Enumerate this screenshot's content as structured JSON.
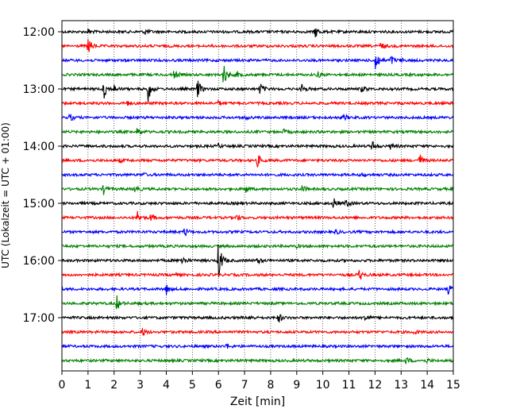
{
  "chart_data": {
    "type": "line",
    "xlabel": "Zeit  [min]",
    "ylabel": "UTC (Lokalzeit = UTC + 01:00)",
    "xlim": [
      0,
      15
    ],
    "x_ticks": [
      0,
      1,
      2,
      3,
      4,
      5,
      6,
      7,
      8,
      9,
      10,
      11,
      12,
      13,
      14,
      15
    ],
    "x_tick_labels": [
      "0",
      "1",
      "2",
      "3",
      "4",
      "5",
      "6",
      "7",
      "8",
      "9",
      "10",
      "11",
      "12",
      "13",
      "14",
      "15"
    ],
    "y_tick_labels": [
      "12:00",
      "13:00",
      "14:00",
      "15:00",
      "16:00",
      "17:00"
    ],
    "grid": "vertical dotted",
    "trace_colors": [
      "#000000",
      "#ff0000",
      "#0000ff",
      "#008000"
    ],
    "traces": [
      {
        "start": "12:00",
        "color": "#000000",
        "events": [
          [
            9.7,
            1.0
          ],
          [
            3.2,
            0.5
          ],
          [
            1.0,
            0.4
          ]
        ]
      },
      {
        "start": "12:15",
        "color": "#ff0000",
        "events": [
          [
            1.0,
            1.5
          ],
          [
            12.2,
            0.6
          ]
        ]
      },
      {
        "start": "12:30",
        "color": "#0000ff",
        "events": [
          [
            12.0,
            2.5
          ],
          [
            12.6,
            0.8
          ],
          [
            13.0,
            0.3
          ]
        ]
      },
      {
        "start": "12:45",
        "color": "#008000",
        "events": [
          [
            6.2,
            2.0
          ],
          [
            4.3,
            0.8
          ],
          [
            9.8,
            0.5
          ],
          [
            6.7,
            0.5
          ]
        ]
      },
      {
        "start": "13:00",
        "color": "#000000",
        "events": [
          [
            1.6,
            1.8
          ],
          [
            3.3,
            2.0
          ],
          [
            5.2,
            1.5
          ],
          [
            7.6,
            1.0
          ],
          [
            9.2,
            0.7
          ],
          [
            2.0,
            0.6
          ],
          [
            11.5,
            0.6
          ]
        ]
      },
      {
        "start": "13:15",
        "color": "#ff0000",
        "events": [
          [
            2.5,
            0.4
          ],
          [
            6.0,
            0.3
          ]
        ]
      },
      {
        "start": "13:30",
        "color": "#0000ff",
        "events": [
          [
            0.3,
            0.6
          ],
          [
            10.8,
            0.5
          ],
          [
            7.0,
            0.3
          ]
        ]
      },
      {
        "start": "13:45",
        "color": "#008000",
        "events": [
          [
            2.9,
            0.8
          ],
          [
            8.5,
            0.3
          ]
        ]
      },
      {
        "start": "14:00",
        "color": "#000000",
        "events": [
          [
            11.9,
            0.8
          ],
          [
            12.6,
            0.5
          ],
          [
            6.0,
            0.3
          ]
        ]
      },
      {
        "start": "14:15",
        "color": "#ff0000",
        "events": [
          [
            7.5,
            1.0
          ],
          [
            13.7,
            1.2
          ],
          [
            2.2,
            0.3
          ]
        ]
      },
      {
        "start": "14:30",
        "color": "#0000ff",
        "events": [
          [
            3.1,
            0.3
          ],
          [
            11.5,
            0.3
          ]
        ]
      },
      {
        "start": "14:45",
        "color": "#008000",
        "events": [
          [
            1.6,
            0.8
          ],
          [
            2.8,
            0.8
          ],
          [
            7.0,
            0.8
          ],
          [
            9.2,
            0.6
          ]
        ]
      },
      {
        "start": "15:00",
        "color": "#000000",
        "events": [
          [
            10.4,
            1.0
          ],
          [
            10.9,
            0.7
          ]
        ]
      },
      {
        "start": "15:15",
        "color": "#ff0000",
        "events": [
          [
            2.9,
            1.0
          ],
          [
            3.4,
            0.6
          ],
          [
            6.7,
            0.6
          ]
        ]
      },
      {
        "start": "15:30",
        "color": "#0000ff",
        "events": [
          [
            4.7,
            0.8
          ],
          [
            10.5,
            0.3
          ]
        ]
      },
      {
        "start": "15:45",
        "color": "#008000",
        "events": [
          [
            9.0,
            0.2
          ]
        ]
      },
      {
        "start": "16:00",
        "color": "#000000",
        "events": [
          [
            6.0,
            3.5
          ],
          [
            4.6,
            0.8
          ],
          [
            7.5,
            0.5
          ]
        ]
      },
      {
        "start": "16:15",
        "color": "#ff0000",
        "events": [
          [
            11.4,
            1.0
          ],
          [
            4.2,
            0.3
          ]
        ]
      },
      {
        "start": "16:30",
        "color": "#0000ff",
        "events": [
          [
            4.0,
            0.8
          ],
          [
            14.8,
            0.7
          ]
        ]
      },
      {
        "start": "16:45",
        "color": "#008000",
        "events": [
          [
            2.1,
            1.2
          ]
        ]
      },
      {
        "start": "17:00",
        "color": "#000000",
        "events": [
          [
            8.3,
            0.8
          ],
          [
            11.6,
            0.8
          ],
          [
            7.2,
            0.4
          ]
        ]
      },
      {
        "start": "17:15",
        "color": "#ff0000",
        "events": [
          [
            3.1,
            0.6
          ],
          [
            13.5,
            0.3
          ]
        ]
      },
      {
        "start": "17:30",
        "color": "#0000ff",
        "events": [
          [
            6.3,
            0.4
          ]
        ]
      },
      {
        "start": "17:45",
        "color": "#008000",
        "events": [
          [
            13.2,
            0.6
          ],
          [
            14.0,
            0.3
          ]
        ]
      }
    ]
  }
}
